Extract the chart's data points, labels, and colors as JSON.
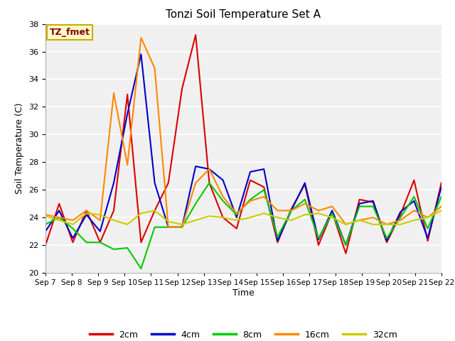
{
  "title": "Tonzi Soil Temperature Set A",
  "xlabel": "Time",
  "ylabel": "Soil Temperature (C)",
  "ylim": [
    20,
    38
  ],
  "annotation": "TZ_fmet",
  "x_tick_labels": [
    "Sep 7",
    "Sep 8",
    "Sep 9",
    "Sep 10",
    "Sep 11",
    "Sep 12",
    "Sep 13",
    "Sep 14",
    "Sep 15",
    "Sep 16",
    "Sep 17",
    "Sep 18",
    "Sep 19",
    "Sep 20",
    "Sep 21",
    "Sep 22"
  ],
  "fig_bg": "#ffffff",
  "plot_bg": "#f0f0f0",
  "colors": {
    "2cm": "#dd0000",
    "4cm": "#0000cc",
    "8cm": "#00cc00",
    "16cm": "#ff8800",
    "32cm": "#cccc00"
  },
  "series": {
    "2cm": [
      22.0,
      25.0,
      22.2,
      24.5,
      22.2,
      24.5,
      32.9,
      22.2,
      24.5,
      26.5,
      33.3,
      37.2,
      26.5,
      24.0,
      23.2,
      26.7,
      26.2,
      22.2,
      24.6,
      26.4,
      22.0,
      24.4,
      21.4,
      25.3,
      25.1,
      22.2,
      24.2,
      26.7,
      22.3,
      26.5
    ],
    "4cm": [
      23.0,
      24.5,
      22.5,
      24.2,
      23.0,
      26.5,
      31.5,
      35.8,
      26.5,
      23.3,
      23.3,
      27.7,
      27.5,
      26.7,
      24.0,
      27.3,
      27.5,
      22.3,
      24.5,
      26.5,
      22.4,
      24.5,
      22.0,
      25.0,
      25.2,
      22.3,
      24.4,
      25.2,
      22.5,
      26.2
    ],
    "8cm": [
      23.5,
      24.0,
      23.2,
      22.2,
      22.2,
      21.7,
      21.8,
      20.3,
      23.3,
      23.3,
      23.3,
      25.0,
      26.5,
      25.2,
      24.2,
      25.3,
      26.0,
      22.6,
      24.5,
      25.3,
      22.5,
      24.3,
      22.0,
      24.8,
      24.8,
      22.5,
      24.0,
      25.5,
      23.2,
      25.5
    ],
    "16cm": [
      24.2,
      24.0,
      23.8,
      24.5,
      23.8,
      33.0,
      27.8,
      37.0,
      34.8,
      23.3,
      23.3,
      26.5,
      27.5,
      25.5,
      24.3,
      25.2,
      25.5,
      24.5,
      24.5,
      25.0,
      24.5,
      24.8,
      23.5,
      23.8,
      24.0,
      23.5,
      23.8,
      24.5,
      24.0,
      24.8
    ],
    "32cm": [
      24.1,
      23.8,
      23.5,
      24.3,
      24.2,
      23.8,
      23.5,
      24.3,
      24.5,
      23.7,
      23.5,
      23.8,
      24.1,
      24.0,
      23.8,
      24.0,
      24.3,
      24.0,
      23.8,
      24.2,
      24.3,
      24.0,
      23.5,
      23.8,
      23.5,
      23.5,
      23.5,
      23.8,
      24.0,
      24.5
    ]
  }
}
